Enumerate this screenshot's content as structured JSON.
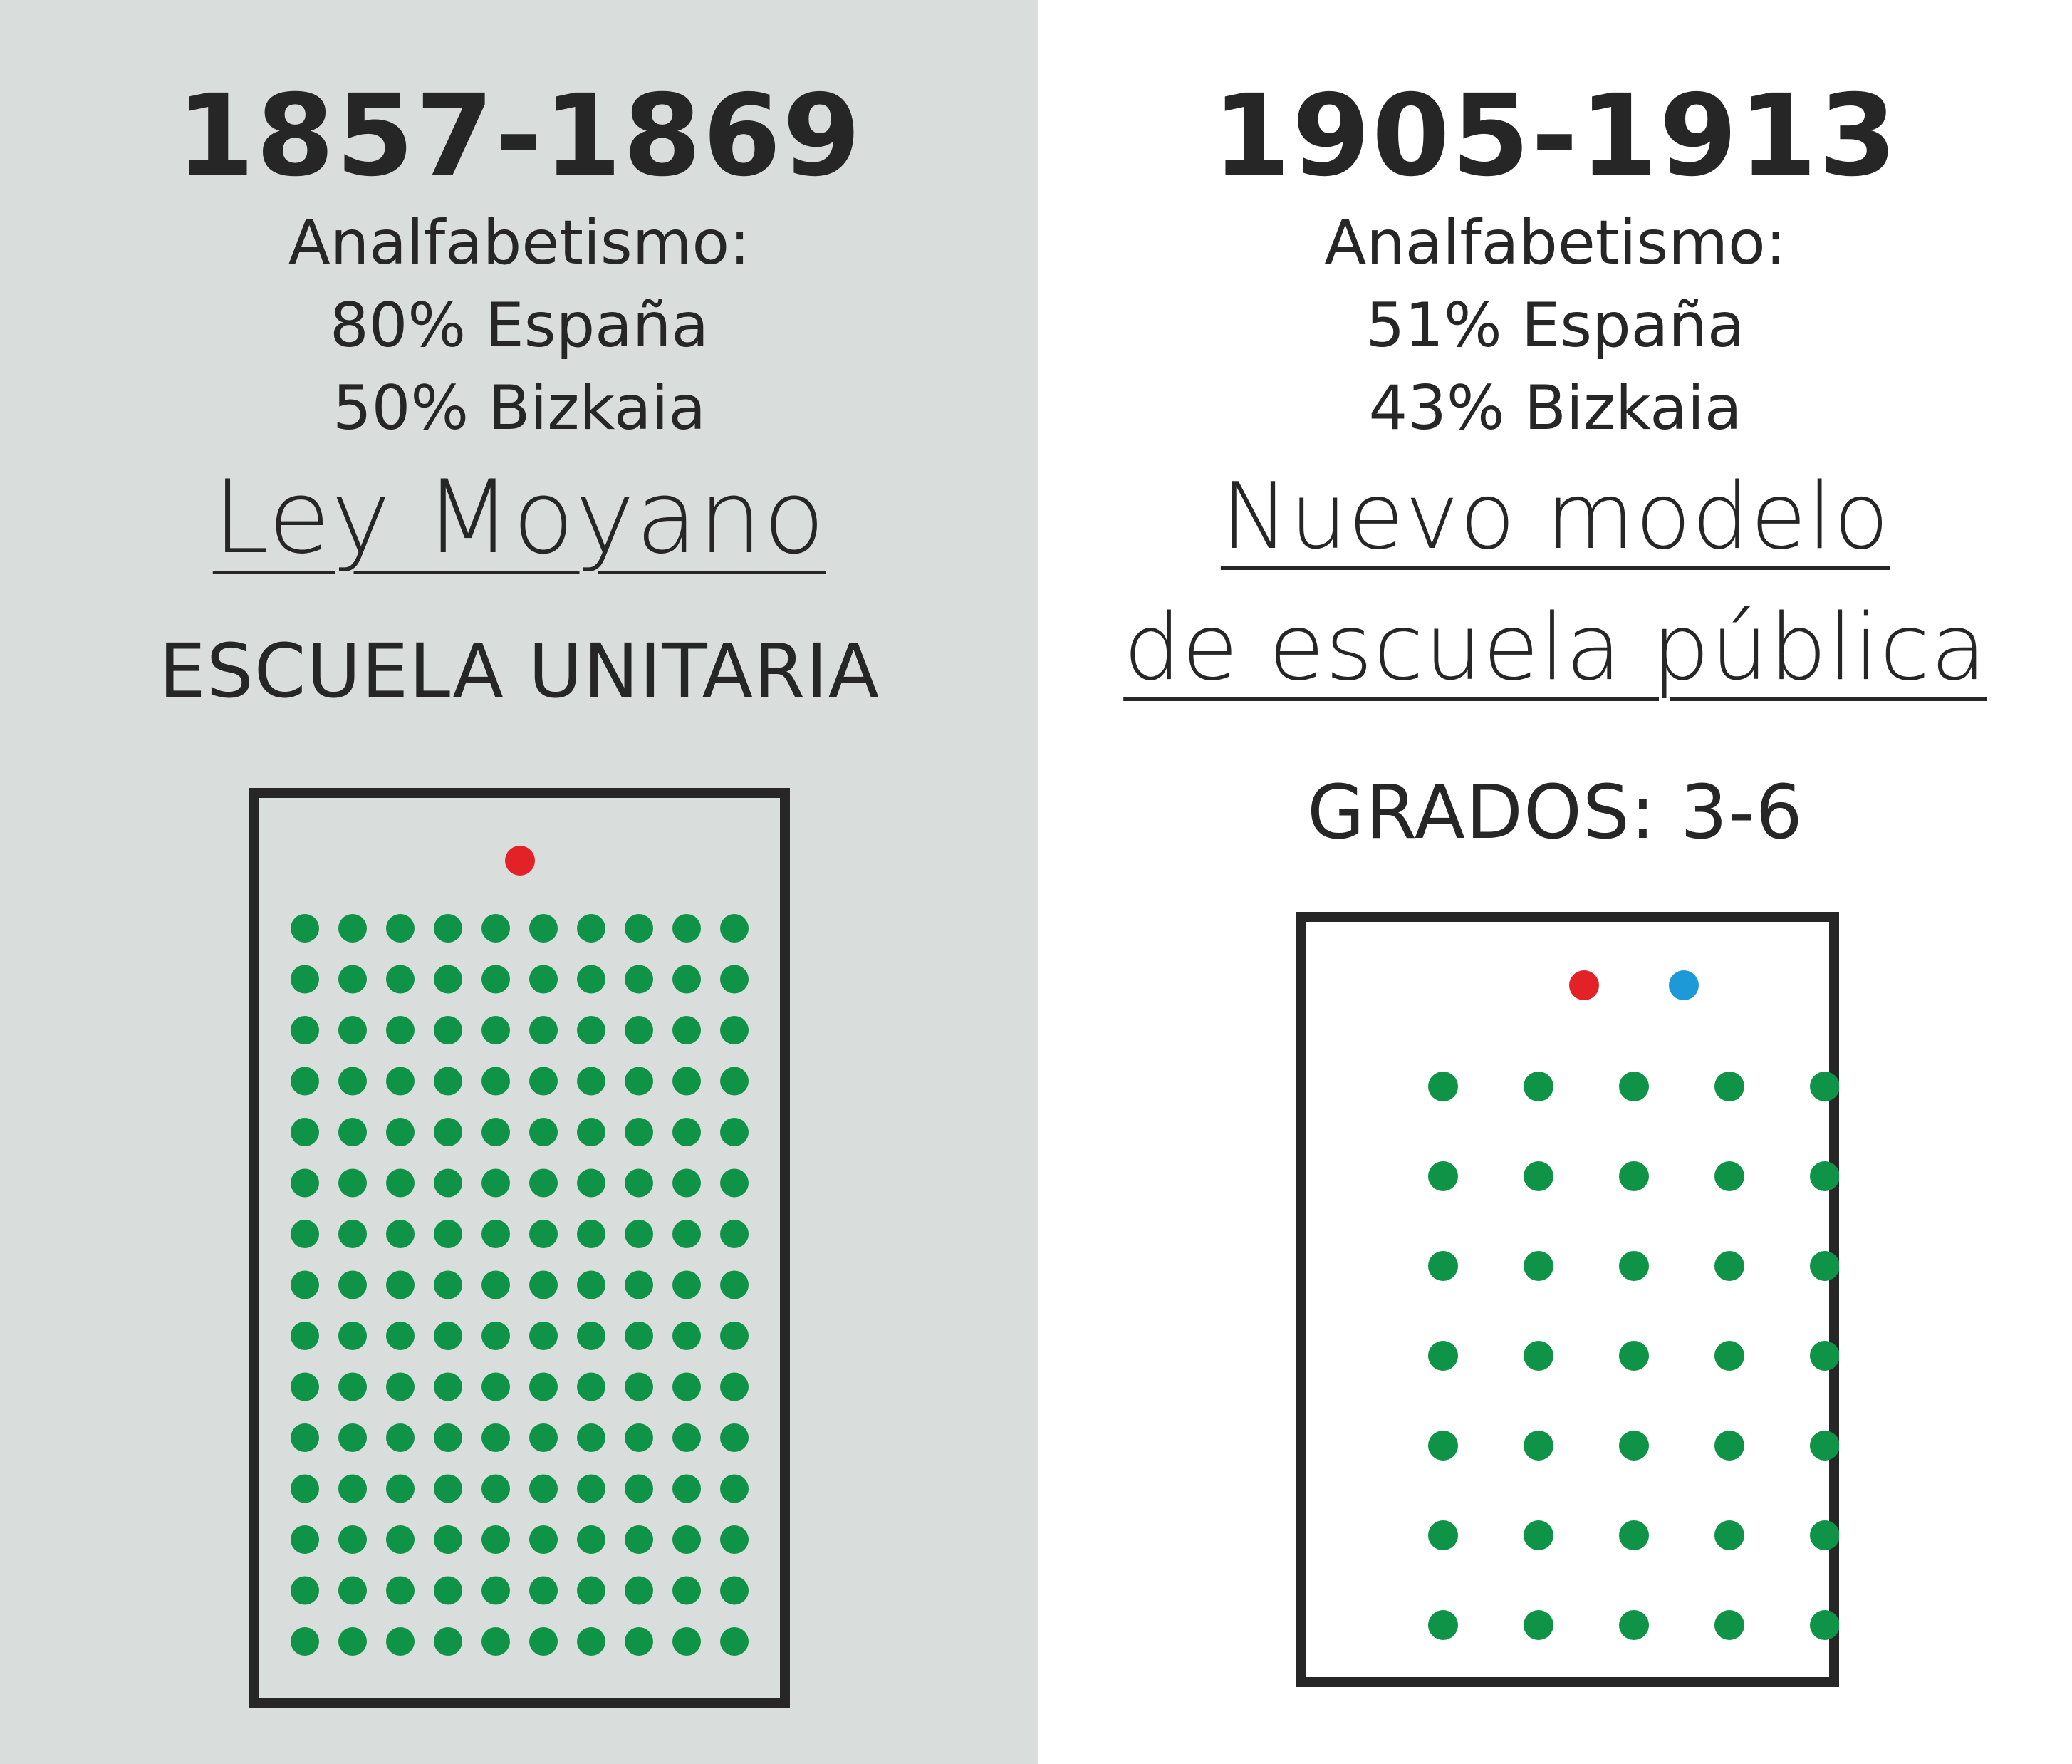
{
  "left": {
    "period": "1857-1869",
    "illiteracy_label": "Analfabetismo:",
    "illiteracy_spain": "80% España",
    "illiteracy_bizkaia": "50% Bizkaia",
    "law": "Ley Moyano",
    "school_type": "ESCUELA UNITARIA",
    "classroom": {
      "teachers": 1,
      "student_rows": 15,
      "student_cols": 10
    }
  },
  "right": {
    "period": "1905-1913",
    "illiteracy_label": "Analfabetismo:",
    "illiteracy_spain": "51% España",
    "illiteracy_bizkaia": "43% Bizkaia",
    "model_line1": "Nuevo modelo",
    "model_line2": "de escuela pública",
    "grades": "GRADOS: 3-6",
    "classroom": {
      "teachers": 2,
      "student_rows": 7,
      "student_cols": 5
    }
  },
  "colors": {
    "left_background": "#d9dedc",
    "student": "#0f9447",
    "teacher": "#e32228",
    "second_teacher": "#1e99d8",
    "frame": "#262626"
  }
}
